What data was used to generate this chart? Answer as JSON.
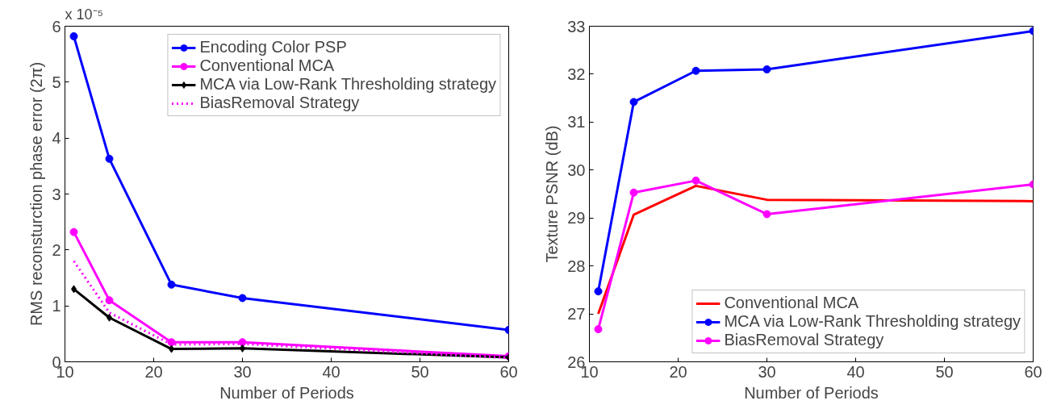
{
  "chart_data": [
    {
      "type": "line",
      "xlabel": "Number of Periods",
      "ylabel": "RMS reconsturction phase error (2π)",
      "annotations": [
        "x 10⁻⁵"
      ],
      "x": [
        11,
        15,
        22,
        30,
        60
      ],
      "xlim": [
        10,
        60
      ],
      "xticks": [
        10,
        20,
        30,
        40,
        50,
        60
      ],
      "ylim": [
        0,
        6
      ],
      "yticks": [
        0,
        1,
        2,
        3,
        4,
        5,
        6
      ],
      "grid": false,
      "legend": "top right",
      "series": [
        {
          "name": "Encoding Color PSP",
          "color": "#0000ff",
          "marker": "circle",
          "line_style": "solid",
          "values": [
            5.82,
            3.63,
            1.38,
            1.14,
            0.57
          ]
        },
        {
          "name": "Conventional MCA",
          "color": "#ff00ff",
          "marker": "circle",
          "line_style": "solid",
          "values": [
            2.32,
            1.1,
            0.35,
            0.35,
            0.1
          ]
        },
        {
          "name": "MCA via Low-Rank Thresholding strategy",
          "color": "#000000",
          "marker": "diamond",
          "line_style": "solid",
          "values": [
            1.3,
            0.79,
            0.23,
            0.24,
            0.08
          ]
        },
        {
          "name": "BiasRemoval Strategy",
          "color": "#ff00ff",
          "marker": "none",
          "line_style": "dotted",
          "values": [
            1.8,
            0.88,
            0.31,
            0.32,
            0.07
          ]
        }
      ]
    },
    {
      "type": "line",
      "xlabel": "Number of Periods",
      "ylabel": "Texture PSNR (dB)",
      "x": [
        11,
        15,
        22,
        30,
        60
      ],
      "xlim": [
        10,
        60
      ],
      "xticks": [
        10,
        20,
        30,
        40,
        50,
        60
      ],
      "ylim": [
        26,
        33
      ],
      "yticks": [
        26,
        27,
        28,
        29,
        30,
        31,
        32,
        33
      ],
      "grid": false,
      "legend": "bottom right",
      "series": [
        {
          "name": "Conventional MCA",
          "color": "#ff0000",
          "marker": "none",
          "line_style": "solid",
          "values": [
            27.0,
            29.07,
            29.67,
            29.38,
            29.35
          ]
        },
        {
          "name": "MCA via Low-Rank Thresholding strategy",
          "color": "#0000ff",
          "marker": "circle",
          "line_style": "solid",
          "values": [
            27.47,
            31.42,
            32.07,
            32.1,
            32.9
          ]
        },
        {
          "name": "BiasRemoval Strategy",
          "color": "#ff00ff",
          "marker": "circle",
          "line_style": "solid",
          "values": [
            26.68,
            29.53,
            29.78,
            29.08,
            29.7
          ]
        }
      ]
    }
  ]
}
